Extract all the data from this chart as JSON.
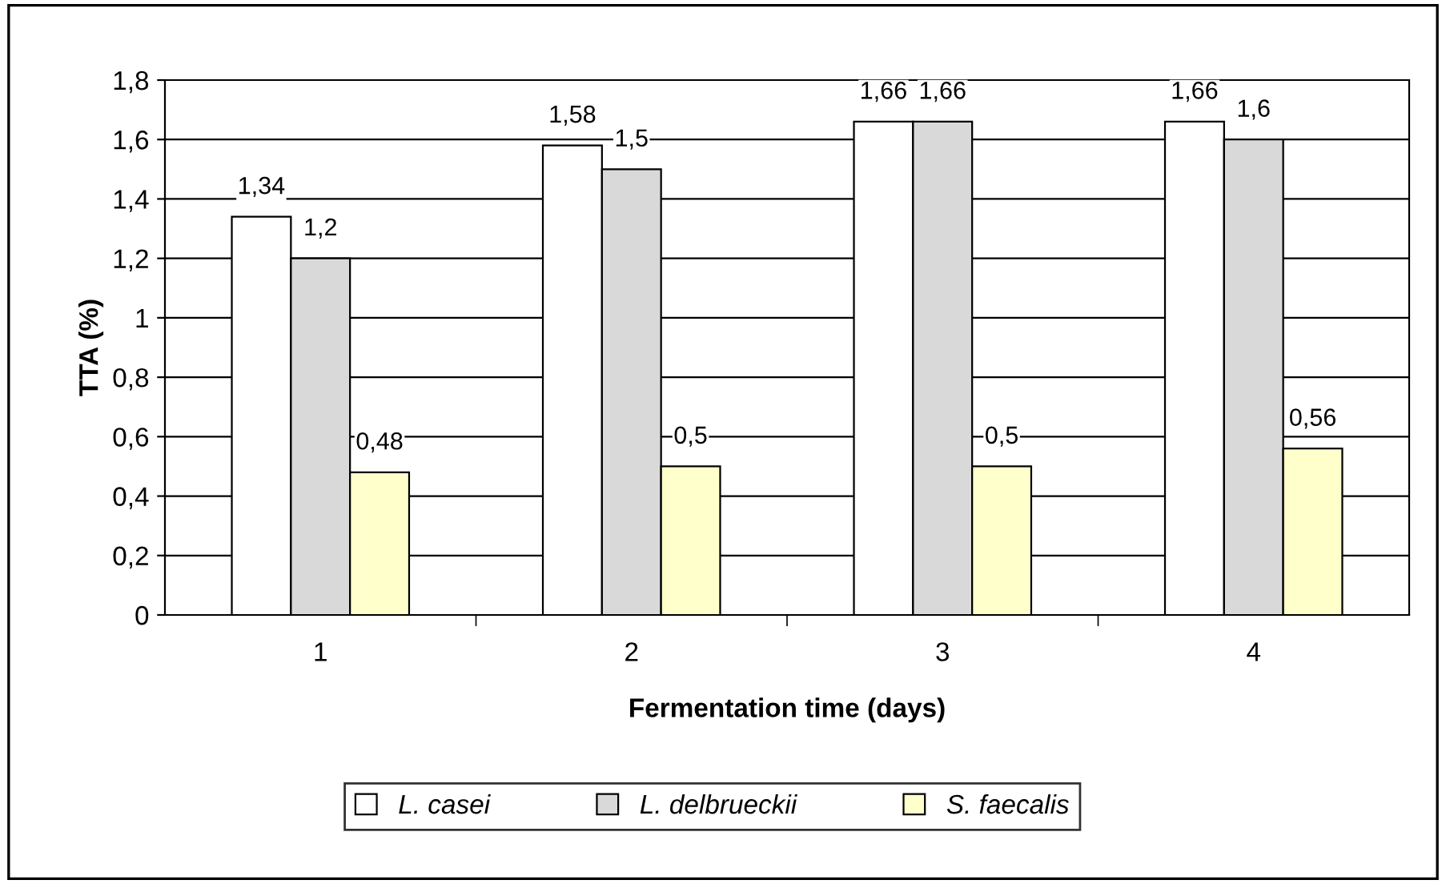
{
  "chart_data": {
    "type": "bar",
    "xlabel": "Fermentation time (days)",
    "ylabel": "TTA (%)",
    "categories": [
      "1",
      "2",
      "3",
      "4"
    ],
    "series": [
      {
        "name": "L. casei",
        "color": "#ffffff",
        "values": [
          1.34,
          1.58,
          1.66,
          1.66
        ],
        "value_labels": [
          "1,34",
          "1,58",
          "1,66",
          "1,66"
        ]
      },
      {
        "name": "L. delbrueckii",
        "color": "#d9d9d9",
        "values": [
          1.2,
          1.5,
          1.66,
          1.6
        ],
        "value_labels": [
          "1,2",
          "1,5",
          "1,66",
          "1,6"
        ]
      },
      {
        "name": "S. faecalis",
        "color": "#ffffcc",
        "values": [
          0.48,
          0.5,
          0.5,
          0.56
        ],
        "value_labels": [
          "0,48",
          "0,5",
          "0,5",
          "0,56"
        ]
      }
    ],
    "ylim": [
      0,
      1.8
    ],
    "yticks": [
      0,
      {
        "value": 0.2,
        "label": "0,2"
      },
      {
        "value": 0.4,
        "label": "0,4"
      },
      {
        "value": 0.6,
        "label": "0,6"
      },
      {
        "value": 0.8,
        "label": "0,8"
      },
      1,
      {
        "value": 1.2,
        "label": "1,2"
      },
      {
        "value": 1.4,
        "label": "1,4"
      },
      {
        "value": 1.6,
        "label": "1,6"
      },
      {
        "value": 1.8,
        "label": "1,8"
      }
    ],
    "grid": "y",
    "legend": "bottom"
  }
}
